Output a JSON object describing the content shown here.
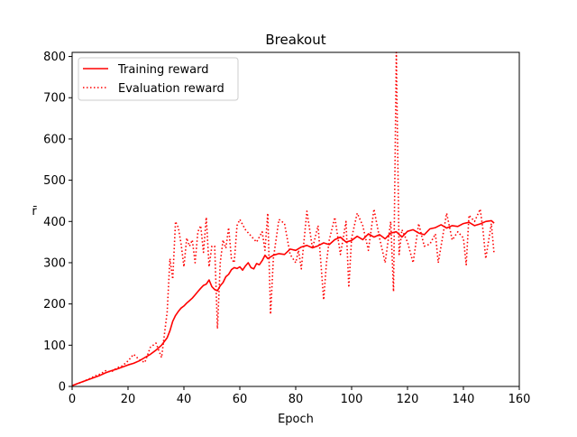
{
  "chart_data": {
    "type": "line",
    "title": "Breakout",
    "xlabel": "Epoch",
    "ylabel": "r̄",
    "xlim": [
      0,
      160
    ],
    "ylim": [
      0,
      810
    ],
    "xticks": [
      0,
      20,
      40,
      60,
      80,
      100,
      120,
      140,
      160
    ],
    "yticks": [
      0,
      100,
      200,
      300,
      400,
      500,
      600,
      700,
      800
    ],
    "grid": false,
    "legend": {
      "placement": "top-left",
      "entries": [
        "Training reward",
        "Evaluation reward"
      ]
    },
    "series": [
      {
        "name": "Training reward",
        "style": "solid",
        "color": "#ff0000",
        "x": [
          0,
          2,
          4,
          6,
          8,
          10,
          12,
          14,
          16,
          18,
          20,
          22,
          24,
          26,
          28,
          30,
          32,
          34,
          35,
          36,
          37,
          38,
          39,
          40,
          41,
          42,
          43,
          44,
          45,
          46,
          47,
          48,
          49,
          50,
          51,
          52,
          53,
          54,
          55,
          56,
          57,
          58,
          59,
          60,
          61,
          62,
          63,
          64,
          65,
          66,
          67,
          68,
          69,
          70,
          72,
          74,
          76,
          78,
          80,
          82,
          84,
          86,
          88,
          90,
          92,
          94,
          96,
          98,
          100,
          102,
          104,
          106,
          108,
          110,
          112,
          114,
          116,
          118,
          120,
          122,
          124,
          126,
          128,
          130,
          132,
          134,
          136,
          138,
          140,
          142,
          144,
          146,
          148,
          150,
          151
        ],
        "y": [
          2,
          7,
          12,
          17,
          22,
          27,
          33,
          38,
          42,
          47,
          52,
          56,
          62,
          70,
          78,
          88,
          100,
          118,
          135,
          158,
          172,
          182,
          190,
          195,
          202,
          208,
          214,
          222,
          230,
          238,
          245,
          248,
          258,
          242,
          235,
          232,
          244,
          252,
          266,
          272,
          283,
          288,
          286,
          290,
          282,
          292,
          300,
          288,
          285,
          298,
          295,
          305,
          318,
          310,
          318,
          322,
          320,
          333,
          330,
          338,
          342,
          336,
          341,
          348,
          344,
          356,
          362,
          350,
          354,
          364,
          356,
          370,
          362,
          368,
          358,
          372,
          375,
          362,
          376,
          380,
          372,
          368,
          382,
          385,
          392,
          384,
          390,
          388,
          395,
          398,
          390,
          394,
          400,
          402,
          396
        ]
      },
      {
        "name": "Evaluation reward",
        "style": "dotted",
        "color": "#ff0000",
        "x": [
          0,
          2,
          4,
          6,
          8,
          10,
          12,
          14,
          16,
          18,
          20,
          22,
          24,
          26,
          28,
          30,
          32,
          34,
          35,
          36,
          37,
          38,
          39,
          40,
          41,
          42,
          43,
          44,
          45,
          46,
          47,
          48,
          49,
          50,
          51,
          52,
          53,
          54,
          55,
          56,
          57,
          58,
          59,
          60,
          62,
          64,
          66,
          68,
          69,
          70,
          71,
          72,
          74,
          76,
          78,
          80,
          81,
          82,
          84,
          86,
          88,
          90,
          91,
          92,
          94,
          96,
          98,
          99,
          100,
          102,
          104,
          106,
          108,
          110,
          112,
          114,
          115,
          116,
          117,
          118,
          120,
          122,
          124,
          126,
          128,
          130,
          131,
          132,
          134,
          136,
          138,
          140,
          141,
          142,
          144,
          146,
          147,
          148,
          150,
          151
        ],
        "y": [
          2,
          7,
          12,
          18,
          25,
          30,
          38,
          35,
          45,
          50,
          62,
          78,
          65,
          58,
          95,
          105,
          70,
          180,
          310,
          260,
          400,
          385,
          345,
          290,
          360,
          340,
          355,
          300,
          375,
          390,
          325,
          410,
          290,
          340,
          340,
          140,
          300,
          355,
          335,
          385,
          310,
          300,
          390,
          405,
          380,
          365,
          350,
          375,
          330,
          420,
          175,
          310,
          405,
          395,
          320,
          300,
          330,
          285,
          425,
          335,
          390,
          210,
          300,
          355,
          410,
          320,
          400,
          240,
          360,
          420,
          390,
          330,
          430,
          360,
          300,
          400,
          230,
          810,
          320,
          380,
          350,
          300,
          395,
          340,
          345,
          370,
          300,
          340,
          420,
          355,
          375,
          360,
          295,
          415,
          400,
          430,
          380,
          310,
          395,
          320
        ]
      }
    ]
  }
}
